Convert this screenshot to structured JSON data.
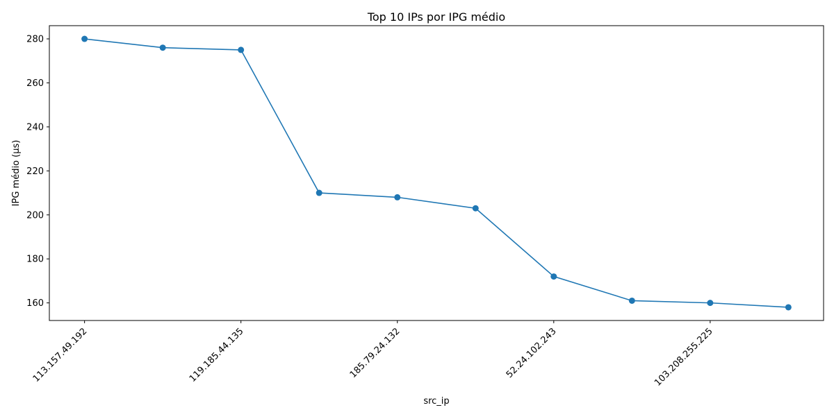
{
  "chart_data": {
    "type": "line",
    "title": "Top 10 IPs por IPG médio",
    "xlabel": "src_ip",
    "ylabel": "IPG médio (µs)",
    "x": [
      1,
      2,
      3,
      4,
      5,
      6,
      7,
      8,
      9,
      10
    ],
    "xtick_labels": [
      {
        "x": 1,
        "label": "113.157.49.192"
      },
      {
        "x": 3,
        "label": "119.185.44.135"
      },
      {
        "x": 5,
        "label": "185.79.24.132"
      },
      {
        "x": 7,
        "label": "52.24.102.243"
      },
      {
        "x": 9,
        "label": "103.208.255.225"
      }
    ],
    "series": [
      {
        "values": [
          280,
          276,
          275,
          210,
          208,
          203,
          172,
          161,
          160,
          158
        ]
      }
    ],
    "ylim": [
      152,
      286
    ],
    "xlim": [
      0.55,
      10.45
    ],
    "yticks": [
      160,
      180,
      200,
      220,
      240,
      260,
      280
    ],
    "grid": false,
    "legend": "none",
    "line_color": "#1f77b4"
  }
}
